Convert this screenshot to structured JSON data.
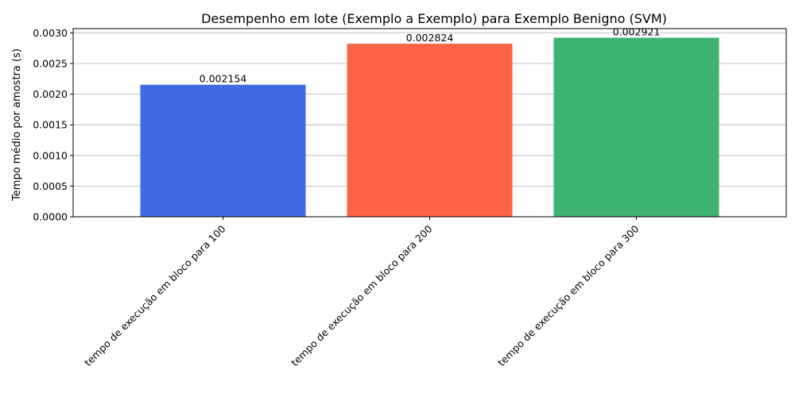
{
  "chart_data": {
    "type": "bar",
    "title": "Desempenho em lote (Exemplo a Exemplo) para Exemplo Benigno (SVM)",
    "xlabel": "",
    "ylabel": "Tempo médio por amostra (s)",
    "categories": [
      "tempo de execução em bloco para 100",
      "tempo de execução em bloco para 200",
      "tempo de execução em bloco para 300"
    ],
    "values": [
      0.002154,
      0.002824,
      0.002921
    ],
    "data_labels": [
      "0.002154",
      "0.002824",
      "0.002921"
    ],
    "colors": [
      "#4169e1",
      "#ff6347",
      "#3cb371"
    ],
    "ylim": [
      0,
      0.00307
    ],
    "yticks": [
      0,
      0.0005,
      0.001,
      0.0015,
      0.002,
      0.0025,
      0.003
    ],
    "ytick_labels": [
      "0.0000",
      "0.0005",
      "0.0010",
      "0.0015",
      "0.0020",
      "0.0025",
      "0.0030"
    ],
    "grid": "y",
    "legend": "none"
  }
}
